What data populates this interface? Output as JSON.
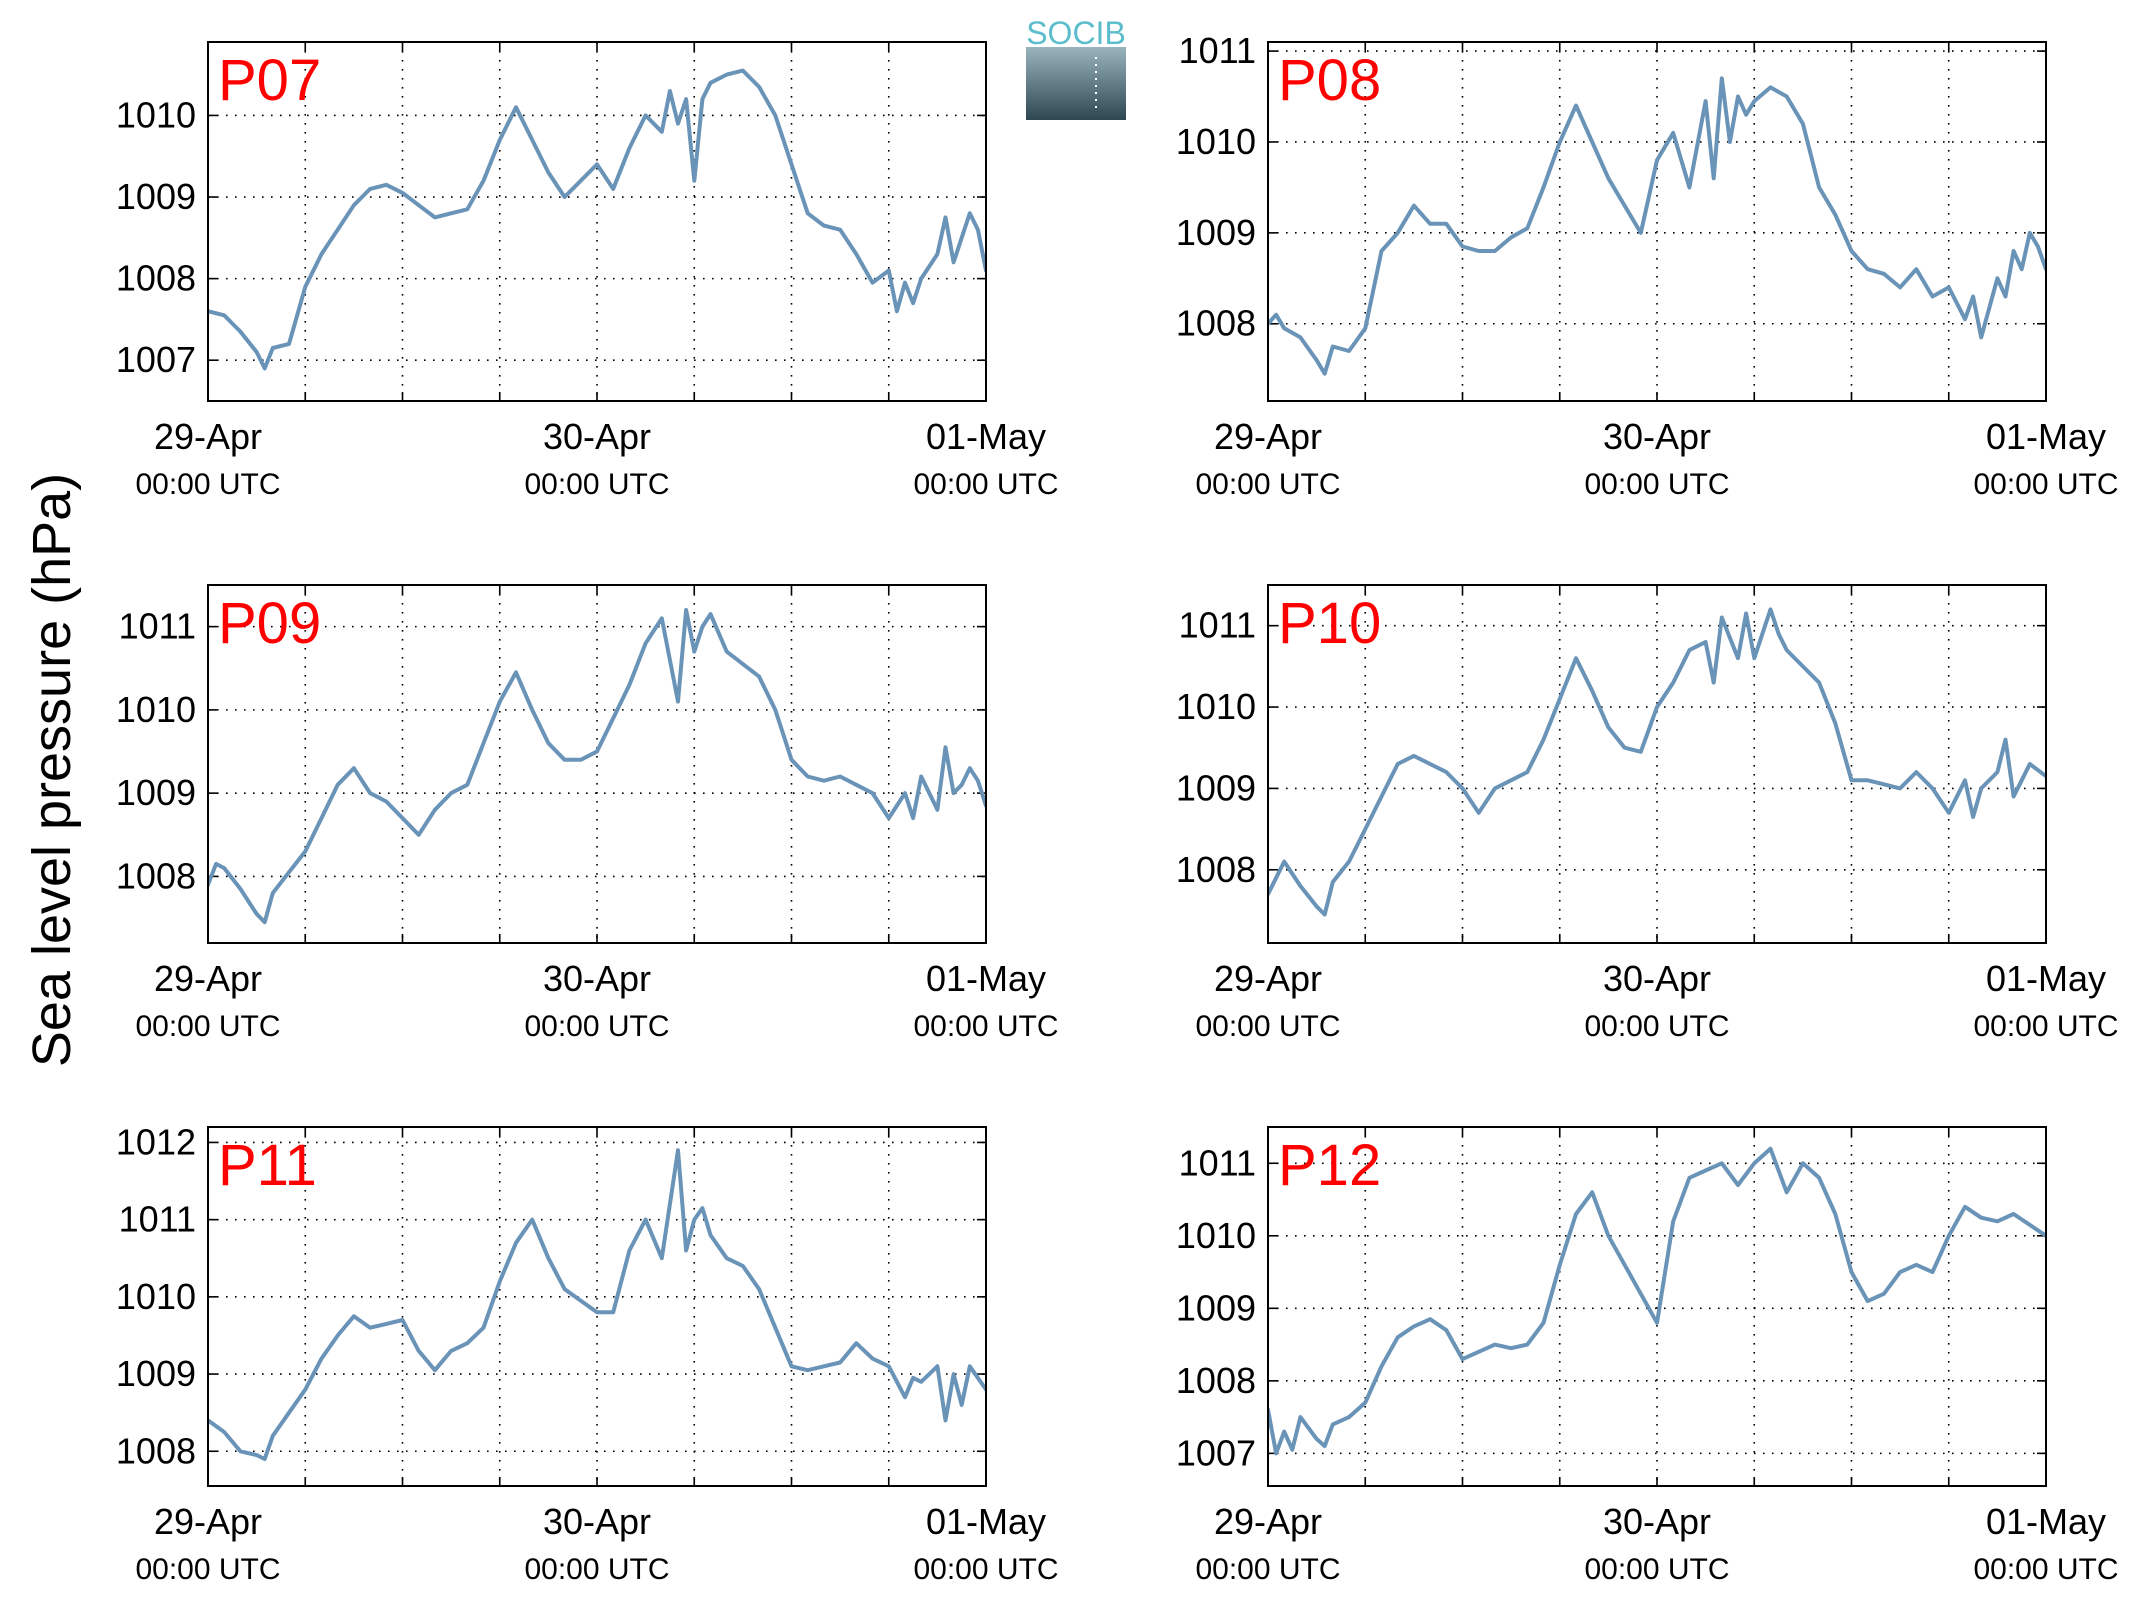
{
  "ylabel": "Sea level pressure (hPa)",
  "logo": {
    "text": "SOCIB",
    "text_color": "#5bbccc",
    "gradient_top": "#9ab4bd",
    "gradient_bottom": "#2e4751"
  },
  "colors": {
    "line": "#6a93b8",
    "panel_label": "#ff0000",
    "grid": "#000000"
  },
  "x_ticks": [
    {
      "date": "29-Apr",
      "time": "00:00 UTC"
    },
    {
      "date": "30-Apr",
      "time": "00:00 UTC"
    },
    {
      "date": "01-May",
      "time": "00:00 UTC"
    }
  ],
  "chart_data": [
    {
      "type": "line",
      "label": "P07",
      "x_unit": "hours since 29-Apr 00:00 UTC",
      "xlim": [
        0,
        48
      ],
      "ylim": [
        1006.5,
        1010.9
      ],
      "yticks": [
        1007,
        1008,
        1009,
        1010
      ],
      "grid": true,
      "series": [
        {
          "x": [
            0,
            1,
            2,
            3,
            3.5,
            4,
            5,
            6,
            7,
            8,
            9,
            10,
            11,
            12,
            13,
            14,
            15,
            16,
            17,
            18,
            19,
            20,
            21,
            22,
            23,
            24,
            25,
            26,
            27,
            28,
            28.5,
            29,
            29.5,
            30,
            30.5,
            31,
            32,
            33,
            34,
            35,
            36,
            37,
            38,
            39,
            40,
            41,
            42,
            42.5,
            43,
            43.5,
            44,
            45,
            45.5,
            46,
            46.5,
            47,
            47.5,
            48
          ],
          "y": [
            1007.6,
            1007.55,
            1007.35,
            1007.1,
            1006.9,
            1007.15,
            1007.2,
            1007.9,
            1008.3,
            1008.6,
            1008.9,
            1009.1,
            1009.15,
            1009.05,
            1008.9,
            1008.75,
            1008.8,
            1008.85,
            1009.2,
            1009.7,
            1010.1,
            1009.7,
            1009.3,
            1009.0,
            1009.2,
            1009.4,
            1009.1,
            1009.6,
            1010.0,
            1009.8,
            1010.3,
            1009.9,
            1010.2,
            1009.2,
            1010.2,
            1010.4,
            1010.5,
            1010.55,
            1010.35,
            1010.0,
            1009.4,
            1008.8,
            1008.65,
            1008.6,
            1008.3,
            1007.95,
            1008.1,
            1007.6,
            1007.95,
            1007.7,
            1008.0,
            1008.3,
            1008.75,
            1008.2,
            1008.5,
            1008.8,
            1008.6,
            1008.1
          ]
        }
      ]
    },
    {
      "type": "line",
      "label": "P08",
      "x_unit": "hours since 29-Apr 00:00 UTC",
      "xlim": [
        0,
        48
      ],
      "ylim": [
        1007.15,
        1011.1
      ],
      "yticks": [
        1008,
        1009,
        1010,
        1011
      ],
      "grid": true,
      "series": [
        {
          "x": [
            0,
            0.5,
            1,
            2,
            3,
            3.5,
            4,
            5,
            6,
            7,
            8,
            9,
            10,
            11,
            12,
            13,
            14,
            15,
            16,
            17,
            18,
            19,
            20,
            21,
            22,
            23,
            24,
            25,
            26,
            27,
            27.5,
            28,
            28.5,
            29,
            29.5,
            30,
            31,
            32,
            33,
            34,
            35,
            36,
            37,
            38,
            39,
            40,
            41,
            42,
            43,
            43.5,
            44,
            45,
            45.5,
            46,
            46.5,
            47,
            47.5,
            48
          ],
          "y": [
            1008.0,
            1008.1,
            1007.95,
            1007.85,
            1007.6,
            1007.45,
            1007.75,
            1007.7,
            1007.95,
            1008.8,
            1009.0,
            1009.3,
            1009.1,
            1009.1,
            1008.85,
            1008.8,
            1008.8,
            1008.95,
            1009.05,
            1009.5,
            1010.0,
            1010.4,
            1010.0,
            1009.6,
            1009.3,
            1009.0,
            1009.8,
            1010.1,
            1009.5,
            1010.45,
            1009.6,
            1010.7,
            1010.0,
            1010.5,
            1010.3,
            1010.45,
            1010.6,
            1010.5,
            1010.2,
            1009.5,
            1009.2,
            1008.8,
            1008.6,
            1008.55,
            1008.4,
            1008.6,
            1008.3,
            1008.4,
            1008.05,
            1008.3,
            1007.85,
            1008.5,
            1008.3,
            1008.8,
            1008.6,
            1009.0,
            1008.85,
            1008.6
          ]
        }
      ]
    },
    {
      "type": "line",
      "label": "P09",
      "x_unit": "hours since 29-Apr 00:00 UTC",
      "xlim": [
        0,
        48
      ],
      "ylim": [
        1007.2,
        1011.5
      ],
      "yticks": [
        1008,
        1009,
        1010,
        1011
      ],
      "grid": true,
      "series": [
        {
          "x": [
            0,
            0.5,
            1,
            2,
            3,
            3.5,
            4,
            5,
            6,
            7,
            8,
            9,
            10,
            11,
            12,
            13,
            14,
            15,
            16,
            17,
            18,
            19,
            20,
            21,
            22,
            23,
            24,
            25,
            26,
            27,
            28,
            29,
            29.5,
            30,
            30.5,
            31,
            32,
            33,
            34,
            35,
            36,
            37,
            38,
            39,
            40,
            41,
            42,
            43,
            43.5,
            44,
            45,
            45.5,
            46,
            46.5,
            47,
            47.5,
            48
          ],
          "y": [
            1007.9,
            1008.15,
            1008.1,
            1007.85,
            1007.55,
            1007.45,
            1007.8,
            1008.05,
            1008.3,
            1008.7,
            1009.1,
            1009.3,
            1009.0,
            1008.9,
            1008.7,
            1008.5,
            1008.8,
            1009.0,
            1009.1,
            1009.6,
            1010.1,
            1010.45,
            1010.0,
            1009.6,
            1009.4,
            1009.4,
            1009.5,
            1009.9,
            1010.3,
            1010.8,
            1011.1,
            1010.1,
            1011.2,
            1010.7,
            1011.0,
            1011.15,
            1010.7,
            1010.55,
            1010.4,
            1010.0,
            1009.4,
            1009.2,
            1009.15,
            1009.2,
            1009.1,
            1009.0,
            1008.7,
            1009.0,
            1008.7,
            1009.2,
            1008.8,
            1009.55,
            1009.0,
            1009.1,
            1009.3,
            1009.15,
            1008.85
          ]
        }
      ]
    },
    {
      "type": "line",
      "label": "P10",
      "x_unit": "hours since 29-Apr 00:00 UTC",
      "xlim": [
        0,
        48
      ],
      "ylim": [
        1007.1,
        1011.5
      ],
      "yticks": [
        1008,
        1009,
        1010,
        1011
      ],
      "grid": true,
      "series": [
        {
          "x": [
            0,
            1,
            2,
            3,
            3.5,
            4,
            5,
            6,
            7,
            8,
            9,
            10,
            11,
            12,
            13,
            14,
            15,
            16,
            17,
            18,
            19,
            20,
            21,
            22,
            23,
            24,
            25,
            26,
            27,
            27.5,
            28,
            29,
            29.5,
            30,
            31,
            31.5,
            32,
            33,
            34,
            35,
            36,
            37,
            38,
            39,
            40,
            41,
            42,
            43,
            43.5,
            44,
            45,
            45.5,
            46,
            46.5,
            47,
            48
          ],
          "y": [
            1007.7,
            1008.1,
            1007.8,
            1007.55,
            1007.45,
            1007.85,
            1008.1,
            1008.5,
            1008.9,
            1009.3,
            1009.4,
            1009.3,
            1009.2,
            1009.0,
            1008.7,
            1009.0,
            1009.1,
            1009.2,
            1009.6,
            1010.1,
            1010.6,
            1010.2,
            1009.75,
            1009.5,
            1009.45,
            1010.0,
            1010.3,
            1010.7,
            1010.8,
            1010.3,
            1011.1,
            1010.6,
            1011.15,
            1010.6,
            1011.2,
            1010.9,
            1010.7,
            1010.5,
            1010.3,
            1009.8,
            1009.1,
            1009.1,
            1009.05,
            1009.0,
            1009.2,
            1009.0,
            1008.7,
            1009.1,
            1008.65,
            1009.0,
            1009.2,
            1009.6,
            1008.9,
            1009.1,
            1009.3,
            1009.15
          ]
        }
      ]
    },
    {
      "type": "line",
      "label": "P11",
      "x_unit": "hours since 29-Apr 00:00 UTC",
      "xlim": [
        0,
        48
      ],
      "ylim": [
        1007.55,
        1012.2
      ],
      "yticks": [
        1008,
        1009,
        1010,
        1011,
        1012
      ],
      "grid": true,
      "series": [
        {
          "x": [
            0,
            1,
            2,
            3,
            3.5,
            4,
            5,
            6,
            7,
            8,
            9,
            10,
            11,
            12,
            13,
            14,
            15,
            16,
            17,
            18,
            19,
            20,
            21,
            22,
            23,
            24,
            25,
            26,
            27,
            28,
            29,
            29.5,
            30,
            30.5,
            31,
            32,
            33,
            34,
            35,
            36,
            37,
            38,
            39,
            40,
            41,
            42,
            43,
            43.5,
            44,
            45,
            45.5,
            46,
            46.5,
            47,
            48
          ],
          "y": [
            1008.4,
            1008.25,
            1008.0,
            1007.95,
            1007.9,
            1008.2,
            1008.5,
            1008.8,
            1009.2,
            1009.5,
            1009.75,
            1009.6,
            1009.65,
            1009.7,
            1009.3,
            1009.05,
            1009.3,
            1009.4,
            1009.6,
            1010.2,
            1010.7,
            1011.0,
            1010.5,
            1010.1,
            1009.95,
            1009.8,
            1009.8,
            1010.6,
            1011.0,
            1010.5,
            1011.9,
            1010.6,
            1011.0,
            1011.15,
            1010.8,
            1010.5,
            1010.4,
            1010.1,
            1009.6,
            1009.1,
            1009.05,
            1009.1,
            1009.15,
            1009.4,
            1009.2,
            1009.1,
            1008.7,
            1008.95,
            1008.9,
            1009.1,
            1008.4,
            1009.0,
            1008.6,
            1009.1,
            1008.8
          ]
        }
      ]
    },
    {
      "type": "line",
      "label": "P12",
      "x_unit": "hours since 29-Apr 00:00 UTC",
      "xlim": [
        0,
        48
      ],
      "ylim": [
        1006.55,
        1011.5
      ],
      "yticks": [
        1007,
        1008,
        1009,
        1010,
        1011
      ],
      "grid": true,
      "series": [
        {
          "x": [
            0,
            0.5,
            1,
            1.5,
            2,
            3,
            3.5,
            4,
            5,
            6,
            7,
            8,
            9,
            10,
            11,
            12,
            13,
            14,
            15,
            16,
            17,
            18,
            19,
            20,
            21,
            22,
            23,
            24,
            25,
            26,
            27,
            28,
            29,
            30,
            31,
            32,
            33,
            34,
            35,
            36,
            37,
            38,
            39,
            40,
            41,
            42,
            43,
            44,
            45,
            46,
            47,
            48
          ],
          "y": [
            1007.6,
            1007.0,
            1007.3,
            1007.05,
            1007.5,
            1007.2,
            1007.1,
            1007.4,
            1007.5,
            1007.7,
            1008.2,
            1008.6,
            1008.75,
            1008.85,
            1008.7,
            1008.3,
            1008.4,
            1008.5,
            1008.45,
            1008.5,
            1008.8,
            1009.6,
            1010.3,
            1010.6,
            1010.0,
            1009.6,
            1009.2,
            1008.8,
            1010.2,
            1010.8,
            1010.9,
            1011.0,
            1010.7,
            1011.0,
            1011.2,
            1010.6,
            1011.0,
            1010.8,
            1010.3,
            1009.5,
            1009.1,
            1009.2,
            1009.5,
            1009.6,
            1009.5,
            1010.0,
            1010.4,
            1010.25,
            1010.2,
            1010.3,
            1010.15,
            1010.0
          ]
        }
      ]
    }
  ]
}
